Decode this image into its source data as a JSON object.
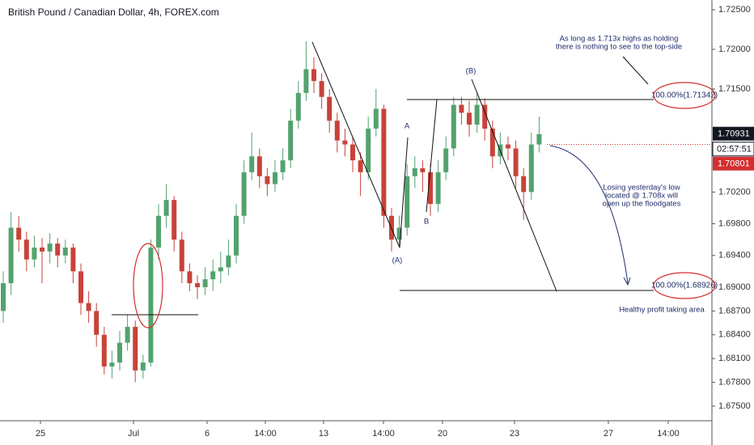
{
  "chart_data": {
    "type": "candlestick",
    "title": "British Pound / Canadian Dollar, 4h, FOREX.com",
    "up_color": "#53a26e",
    "down_color": "#c8433a",
    "ylim": [
      1.67316,
      1.72622
    ],
    "yticks": [
      {
        "value": 1.725,
        "label": "1.72500"
      },
      {
        "value": 1.72,
        "label": "1.72000"
      },
      {
        "value": 1.715,
        "label": "1.71500"
      },
      {
        "value": 1.702,
        "label": "1.70200"
      },
      {
        "value": 1.698,
        "label": "1.69800"
      },
      {
        "value": 1.694,
        "label": "1.69400"
      },
      {
        "value": 1.69,
        "label": "1.69000"
      },
      {
        "value": 1.687,
        "label": "1.68700"
      },
      {
        "value": 1.684,
        "label": "1.68400"
      },
      {
        "value": 1.681,
        "label": "1.68100"
      },
      {
        "value": 1.678,
        "label": "1.67800"
      },
      {
        "value": 1.675,
        "label": "1.67500"
      }
    ],
    "xtick_labels": [
      "25",
      "Jul",
      "6",
      "14:00",
      "13",
      "14:00",
      "20",
      "23",
      "27",
      "14:00"
    ],
    "last_price": 1.70931,
    "countdown": "02:57:51",
    "bid_price": 1.70801,
    "candles": [
      [
        1.687,
        1.692,
        1.6855,
        1.6905
      ],
      [
        1.6905,
        1.6995,
        1.689,
        1.6975
      ],
      [
        1.6975,
        1.699,
        1.6945,
        1.696
      ],
      [
        1.696,
        1.697,
        1.692,
        1.6935
      ],
      [
        1.6935,
        1.6965,
        1.6925,
        1.695
      ],
      [
        1.695,
        1.6962,
        1.6905,
        1.6945
      ],
      [
        1.6945,
        1.6968,
        1.693,
        1.6955
      ],
      [
        1.6955,
        1.6962,
        1.6925,
        1.694
      ],
      [
        1.694,
        1.696,
        1.693,
        1.695
      ],
      [
        1.695,
        1.6955,
        1.6905,
        1.692
      ],
      [
        1.692,
        1.693,
        1.6865,
        1.688
      ],
      [
        1.688,
        1.6895,
        1.6855,
        1.687
      ],
      [
        1.687,
        1.688,
        1.6825,
        1.684
      ],
      [
        1.684,
        1.685,
        1.679,
        1.68
      ],
      [
        1.68,
        1.682,
        1.6785,
        1.6805
      ],
      [
        1.6805,
        1.6845,
        1.6795,
        1.683
      ],
      [
        1.683,
        1.6865,
        1.682,
        1.685
      ],
      [
        1.685,
        1.6858,
        1.678,
        1.6795
      ],
      [
        1.6795,
        1.6815,
        1.6785,
        1.6805
      ],
      [
        1.6805,
        1.696,
        1.68,
        1.695
      ],
      [
        1.695,
        1.7005,
        1.6935,
        1.699
      ],
      [
        1.699,
        1.703,
        1.6975,
        1.701
      ],
      [
        1.701,
        1.7015,
        1.6945,
        1.696
      ],
      [
        1.696,
        1.697,
        1.6905,
        1.692
      ],
      [
        1.692,
        1.693,
        1.6895,
        1.6905
      ],
      [
        1.6905,
        1.6915,
        1.6885,
        1.69
      ],
      [
        1.69,
        1.6925,
        1.689,
        1.691
      ],
      [
        1.691,
        1.6935,
        1.6895,
        1.692
      ],
      [
        1.692,
        1.6945,
        1.6905,
        1.6925
      ],
      [
        1.6925,
        1.696,
        1.6915,
        1.694
      ],
      [
        1.694,
        1.7005,
        1.693,
        1.699
      ],
      [
        1.699,
        1.706,
        1.698,
        1.7045
      ],
      [
        1.7045,
        1.7095,
        1.7035,
        1.7065
      ],
      [
        1.7065,
        1.7075,
        1.7025,
        1.704
      ],
      [
        1.704,
        1.705,
        1.7015,
        1.703
      ],
      [
        1.703,
        1.706,
        1.702,
        1.7045
      ],
      [
        1.7045,
        1.7075,
        1.7035,
        1.706
      ],
      [
        1.706,
        1.7125,
        1.705,
        1.711
      ],
      [
        1.711,
        1.716,
        1.71,
        1.7145
      ],
      [
        1.7145,
        1.721,
        1.7135,
        1.7175
      ],
      [
        1.7175,
        1.719,
        1.7145,
        1.716
      ],
      [
        1.716,
        1.717,
        1.7125,
        1.714
      ],
      [
        1.714,
        1.715,
        1.7095,
        1.711
      ],
      [
        1.711,
        1.712,
        1.707,
        1.7085
      ],
      [
        1.7085,
        1.71,
        1.7065,
        1.708
      ],
      [
        1.708,
        1.709,
        1.7045,
        1.706
      ],
      [
        1.706,
        1.707,
        1.7015,
        1.7045
      ],
      [
        1.7045,
        1.7115,
        1.7035,
        1.71
      ],
      [
        1.71,
        1.715,
        1.709,
        1.7125
      ],
      [
        1.7125,
        1.713,
        1.6975,
        1.699
      ],
      [
        1.699,
        1.7,
        1.6945,
        1.696
      ],
      [
        1.696,
        1.699,
        1.695,
        1.6975
      ],
      [
        1.6975,
        1.7055,
        1.6965,
        1.704
      ],
      [
        1.704,
        1.7065,
        1.7025,
        1.705
      ],
      [
        1.705,
        1.706,
        1.702,
        1.7045
      ],
      [
        1.7045,
        1.7055,
        1.699,
        1.7005
      ],
      [
        1.7005,
        1.706,
        1.6995,
        1.7045
      ],
      [
        1.7045,
        1.709,
        1.7035,
        1.7075
      ],
      [
        1.7075,
        1.714,
        1.7065,
        1.713
      ],
      [
        1.713,
        1.714,
        1.7105,
        1.712
      ],
      [
        1.712,
        1.7135,
        1.709,
        1.7105
      ],
      [
        1.7105,
        1.7145,
        1.7095,
        1.713
      ],
      [
        1.713,
        1.7138,
        1.7085,
        1.71
      ],
      [
        1.71,
        1.711,
        1.705,
        1.7065
      ],
      [
        1.7065,
        1.7095,
        1.7055,
        1.708
      ],
      [
        1.708,
        1.709,
        1.706,
        1.7075
      ],
      [
        1.7075,
        1.7085,
        1.7025,
        1.704
      ],
      [
        1.704,
        1.705,
        1.6985,
        1.702
      ],
      [
        1.702,
        1.7095,
        1.701,
        1.708
      ],
      [
        1.708,
        1.7115,
        1.707,
        1.7093
      ]
    ],
    "annotations": {
      "top_note_1": "As long as 1.713x highs as holding",
      "top_note_2": "there is nothing to see to the top-side",
      "upper_target": "100.00%(1.71342)",
      "mid_note_1": "Losing yesterday's low",
      "mid_note_2": "located @ 1.708x will",
      "mid_note_3": "open up the floodgates",
      "lower_target": "100.00%(1.68926)",
      "bottom_note": "Healthy profit taking area",
      "wave_a_paren": "(A)",
      "wave_a": "A",
      "wave_b": "B",
      "wave_b_paren": "(B)"
    }
  }
}
